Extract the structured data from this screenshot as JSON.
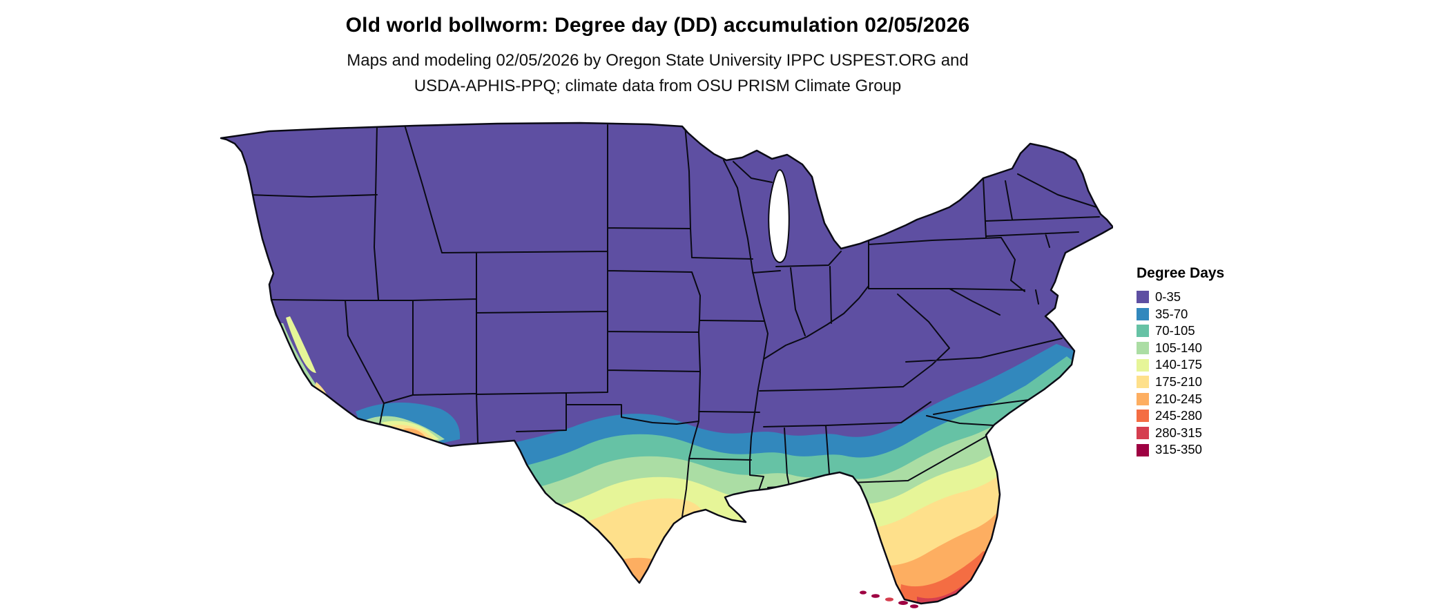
{
  "title": "Old world bollworm: Degree day (DD) accumulation 02/05/2026",
  "subtitle_line1": "Maps and modeling 02/05/2026 by Oregon State University IPPC USPEST.ORG and",
  "subtitle_line2": "USDA-APHIS-PPQ; climate data from OSU PRISM Climate Group",
  "legend": {
    "title": "Degree Days",
    "items": [
      {
        "label": "0-35",
        "color": "#5e4fa2"
      },
      {
        "label": "35-70",
        "color": "#3288bd"
      },
      {
        "label": "70-105",
        "color": "#66c2a5"
      },
      {
        "label": "105-140",
        "color": "#abdda4"
      },
      {
        "label": "140-175",
        "color": "#e6f598"
      },
      {
        "label": "175-210",
        "color": "#fee08b"
      },
      {
        "label": "210-245",
        "color": "#fdae61"
      },
      {
        "label": "245-280",
        "color": "#f46d43"
      },
      {
        "label": "280-315",
        "color": "#d53e4f"
      },
      {
        "label": "315-350",
        "color": "#9e0142"
      }
    ]
  }
}
